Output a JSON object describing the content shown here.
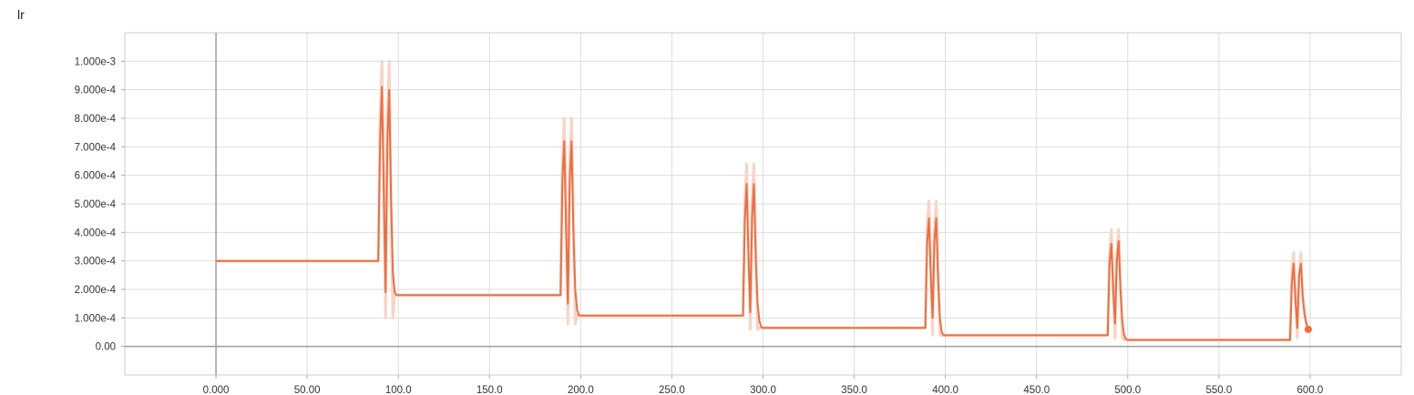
{
  "chart_data": {
    "type": "line",
    "title": "lr",
    "xlabel": "",
    "ylabel": "",
    "xlim": [
      -50,
      650
    ],
    "ylim": [
      -0.0001,
      0.0011
    ],
    "grid": true,
    "legend": "none",
    "x_ticks": [
      "0.000",
      "50.00",
      "100.0",
      "150.0",
      "200.0",
      "250.0",
      "300.0",
      "350.0",
      "400.0",
      "450.0",
      "500.0",
      "550.0",
      "600.0"
    ],
    "x_tick_values": [
      0,
      50,
      100,
      150,
      200,
      250,
      300,
      350,
      400,
      450,
      500,
      550,
      600
    ],
    "y_ticks": [
      "0.00",
      "1.000e-4",
      "2.000e-4",
      "3.000e-4",
      "4.000e-4",
      "5.000e-4",
      "6.000e-4",
      "7.000e-4",
      "8.000e-4",
      "9.000e-4",
      "1.000e-3"
    ],
    "y_tick_values": [
      0,
      0.0001,
      0.0002,
      0.0003,
      0.0004,
      0.0005,
      0.0006,
      0.0007,
      0.0008,
      0.0009,
      0.001
    ],
    "colors": {
      "smoothed": "#f26c3e",
      "raw": "#fbd3c5"
    },
    "series": [
      {
        "role": "smoothed",
        "x": [
          0,
          89,
          90,
          91,
          92,
          93,
          94,
          95,
          96,
          97,
          98,
          99,
          100,
          101,
          189,
          190,
          191,
          192,
          193,
          194,
          195,
          196,
          197,
          198,
          199,
          200,
          202,
          289,
          290,
          291,
          292,
          293,
          294,
          295,
          296,
          297,
          298,
          299,
          300,
          302,
          389,
          390,
          391,
          392,
          393,
          394,
          395,
          396,
          397,
          398,
          399,
          400,
          402,
          489,
          490,
          491,
          492,
          493,
          494,
          495,
          496,
          497,
          498,
          499,
          500,
          502,
          589,
          590,
          591,
          592,
          593,
          594,
          595,
          596,
          597,
          598,
          599
        ],
        "y": [
          0.0003,
          0.0003,
          0.00072,
          0.00091,
          0.00055,
          0.00019,
          0.00072,
          0.0009,
          0.00052,
          0.00026,
          0.00019,
          0.00018,
          0.00018,
          0.00018,
          0.00018,
          0.00058,
          0.00072,
          0.00042,
          0.00015,
          0.00058,
          0.00072,
          0.0004,
          0.0002,
          0.00013,
          0.00011,
          0.000108,
          0.000108,
          0.000108,
          0.00044,
          0.00057,
          0.00032,
          0.00012,
          0.00045,
          0.00057,
          0.00031,
          0.00015,
          9e-05,
          6.8e-05,
          6.5e-05,
          6.5e-05,
          6.5e-05,
          0.00036,
          0.00045,
          0.00025,
          0.0001,
          0.00037,
          0.00045,
          0.00024,
          0.0001,
          5e-05,
          4e-05,
          3.9e-05,
          3.9e-05,
          3.9e-05,
          0.00029,
          0.00036,
          0.0002,
          8e-05,
          0.0003,
          0.00037,
          0.0002,
          9e-05,
          4e-05,
          2.6e-05,
          2.3e-05,
          2.3e-05,
          2.3e-05,
          0.00022,
          0.00029,
          0.00016,
          6.5e-05,
          0.00025,
          0.00029,
          0.00017,
          0.00011,
          8e-05,
          6e-05
        ]
      },
      {
        "role": "raw",
        "x": [
          0,
          89,
          90,
          91,
          92,
          93,
          94,
          95,
          96,
          97,
          98,
          99,
          100,
          101,
          189,
          190,
          191,
          192,
          193,
          194,
          195,
          196,
          197,
          198,
          199,
          200,
          202,
          289,
          290,
          291,
          292,
          293,
          294,
          295,
          296,
          297,
          298,
          299,
          300,
          302,
          389,
          390,
          391,
          392,
          393,
          394,
          395,
          396,
          397,
          398,
          399,
          400,
          402,
          489,
          490,
          491,
          492,
          493,
          494,
          495,
          496,
          497,
          498,
          499,
          500,
          502,
          589,
          590,
          591,
          592,
          593,
          594,
          595,
          596,
          597,
          598,
          599
        ],
        "y": [
          0.0003,
          0.0003,
          0.0008,
          0.001,
          0.0006,
          0.0001,
          0.0008,
          0.001,
          0.0005,
          0.0001,
          0.00018,
          0.00018,
          0.00018,
          0.00018,
          0.00018,
          0.00064,
          0.0008,
          0.00045,
          8e-05,
          0.00064,
          0.0008,
          0.00045,
          8e-05,
          0.00011,
          0.000108,
          0.000108,
          0.000108,
          0.000108,
          0.00051,
          0.00064,
          0.00036,
          6e-05,
          0.00051,
          0.00064,
          0.00036,
          6e-05,
          6.5e-05,
          6.5e-05,
          6.5e-05,
          6.5e-05,
          6.5e-05,
          0.00041,
          0.00051,
          0.00029,
          4e-05,
          0.00041,
          0.00051,
          0.00029,
          4e-05,
          3.9e-05,
          3.9e-05,
          3.9e-05,
          3.9e-05,
          3.9e-05,
          0.00033,
          0.00041,
          0.00023,
          3e-05,
          0.00033,
          0.00041,
          0.00023,
          3e-05,
          2.3e-05,
          2.3e-05,
          2.3e-05,
          2.3e-05,
          2.3e-05,
          0.00026,
          0.00033,
          0.00018,
          3e-05,
          0.00026,
          0.00033,
          0.00018,
          0.00012,
          8e-05,
          6e-05
        ]
      }
    ]
  }
}
